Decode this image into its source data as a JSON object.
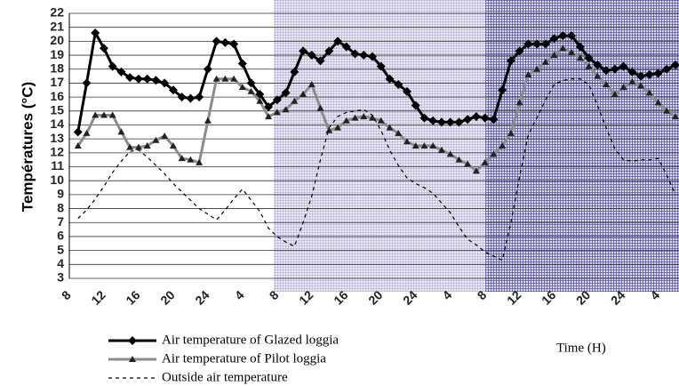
{
  "chart_data": {
    "type": "line",
    "y_label": "Températures (°C)",
    "x_label": "Time (H)",
    "ylim": [
      3,
      22
    ],
    "yticks": [
      3,
      4,
      5,
      6,
      7,
      8,
      9,
      10,
      11,
      12,
      13,
      14,
      15,
      16,
      17,
      18,
      19,
      20,
      21,
      22
    ],
    "grid": true,
    "legend": "bottom-left",
    "categories": [
      "8",
      null,
      null,
      null,
      "12",
      null,
      null,
      null,
      "16",
      null,
      null,
      null,
      "20",
      null,
      null,
      null,
      "24",
      null,
      null,
      null,
      "4",
      null,
      null,
      null,
      "8",
      null,
      null,
      null,
      "12",
      null,
      null,
      null,
      "16",
      null,
      null,
      null,
      "20",
      null,
      null,
      null,
      "24",
      null,
      null,
      null,
      "4",
      null,
      null,
      null,
      "8",
      null,
      null,
      null,
      "12",
      null,
      null,
      null,
      "16",
      null,
      null,
      null,
      "20",
      null,
      null,
      null,
      "24",
      null,
      null,
      null,
      "4",
      null,
      null
    ],
    "series": [
      {
        "name": "Air temperature of Glazed loggia",
        "color": "#000000",
        "marker": "diamond",
        "dash": false,
        "values": [
          null,
          13.5,
          17,
          20.6,
          19.5,
          18.2,
          17.8,
          17.4,
          17.3,
          17.3,
          17.2,
          17.0,
          16.5,
          16.0,
          15.9,
          16.0,
          18.0,
          20.0,
          19.9,
          19.8,
          18.4,
          17.0,
          16.2,
          15.3,
          15.8,
          16.3,
          17.8,
          19.3,
          19.0,
          18.6,
          19.3,
          20.0,
          19.6,
          19.1,
          19.0,
          18.9,
          18.2,
          17.3,
          16.9,
          16.4,
          15.4,
          14.5,
          14.3,
          14.2,
          14.2,
          14.2,
          14.4,
          14.6,
          14.5,
          14.4,
          16.5,
          18.6,
          19.3,
          19.8,
          19.8,
          19.8,
          20.2,
          20.4,
          20.4,
          19.6,
          18.8,
          18.3,
          17.9,
          18.0,
          18.2,
          17.8,
          17.5,
          17.6,
          17.7,
          18.0,
          18.3
        ]
      },
      {
        "name": "Air temperature of Pilot loggia",
        "color": "#8c8c8c",
        "marker": "triangle",
        "dash": false,
        "values": [
          null,
          12.5,
          13.4,
          14.7,
          14.7,
          14.7,
          13.5,
          12.4,
          12.4,
          12.5,
          12.9,
          13.2,
          12.5,
          11.6,
          11.5,
          11.3,
          14.3,
          17.3,
          17.3,
          17.3,
          16.7,
          16.4,
          15.7,
          14.6,
          14.9,
          15.1,
          15.7,
          16.2,
          16.9,
          15.2,
          13.6,
          13.8,
          14.3,
          14.5,
          14.6,
          14.5,
          14.3,
          13.8,
          13.4,
          12.8,
          12.5,
          12.5,
          12.5,
          12.2,
          11.9,
          11.5,
          11.2,
          10.7,
          11.3,
          11.9,
          12.5,
          13.4,
          15.6,
          17.6,
          18.0,
          18.5,
          19.0,
          19.5,
          19.2,
          18.8,
          18.2,
          17.5,
          16.9,
          16.2,
          16.7,
          17.1,
          16.8,
          16.3,
          15.6,
          15.0,
          14.6
        ]
      },
      {
        "name": "Outside air temperature",
        "color": "#000000",
        "marker": "none",
        "dash": true,
        "values": [
          null,
          7.3,
          7.9,
          8.7,
          9.6,
          10.6,
          11.4,
          12.1,
          12.2,
          11.7,
          11.1,
          10.5,
          9.8,
          9.2,
          8.6,
          8.0,
          7.6,
          7.2,
          7.9,
          8.7,
          9.4,
          8.6,
          7.8,
          6.6,
          6.0,
          5.6,
          5.3,
          7.0,
          8.9,
          11.5,
          13.8,
          14.6,
          14.9,
          15.0,
          15.1,
          14.7,
          13.6,
          12.2,
          11.1,
          10.2,
          9.8,
          9.5,
          9.1,
          8.4,
          7.7,
          6.7,
          5.8,
          5.4,
          4.9,
          4.6,
          4.3,
          7.0,
          10.3,
          13.3,
          14.5,
          15.8,
          16.9,
          17.2,
          17.3,
          17.3,
          16.9,
          15.4,
          13.8,
          12.3,
          11.5,
          11.4,
          11.5,
          11.5,
          11.6,
          10.4,
          9.0
        ]
      }
    ]
  }
}
